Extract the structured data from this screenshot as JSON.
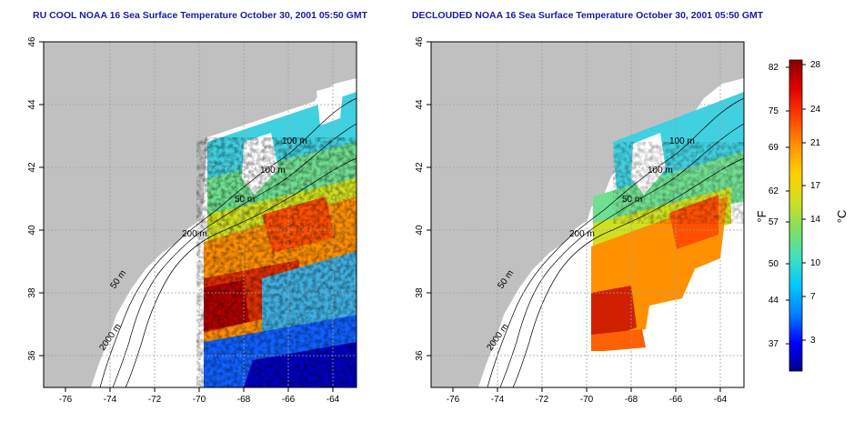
{
  "maps": [
    {
      "title": "RU COOL NOAA 16 Sea Surface Temperature October 30, 2001 05:50 GMT",
      "variant": "raw",
      "x_ticks": [
        "-76",
        "-74",
        "-72",
        "-70",
        "-68",
        "-66",
        "-64"
      ],
      "y_ticks": [
        "36",
        "38",
        "40",
        "42",
        "44",
        "46"
      ],
      "contour_labels": [
        "100 m",
        "100 m",
        "50 m",
        "200 m",
        "50 m",
        "2000 m"
      ]
    },
    {
      "title": "DECLOUDED NOAA 16 Sea Surface Temperature October 30, 2001 05:50 GMT",
      "variant": "declouded",
      "x_ticks": [
        "-76",
        "-74",
        "-72",
        "-70",
        "-68",
        "-66",
        "-64"
      ],
      "y_ticks": [
        "36",
        "38",
        "40",
        "42",
        "44",
        "46"
      ],
      "contour_labels": [
        "100 m",
        "100 m",
        "50 m",
        "200 m",
        "50 m",
        "2000 m"
      ]
    }
  ],
  "colorbar": {
    "fahrenheit_labels": [
      "82",
      "75",
      "69",
      "62",
      "57",
      "50",
      "44",
      "37"
    ],
    "celsius_labels": [
      "28",
      "24",
      "21",
      "17",
      "14",
      "10",
      "7",
      "3"
    ],
    "fahrenheit_unit": "°F",
    "celsius_unit": "°C",
    "colors": [
      "#00008b",
      "#0000ff",
      "#0080ff",
      "#00c8ff",
      "#40e0c0",
      "#80e060",
      "#d0e020",
      "#ffd000",
      "#ff9000",
      "#ff4000",
      "#e00000",
      "#8b0000"
    ]
  },
  "colors": {
    "land": "#c0c0c0",
    "title": "#1a1aa6",
    "grid": "#a0a0a0"
  }
}
